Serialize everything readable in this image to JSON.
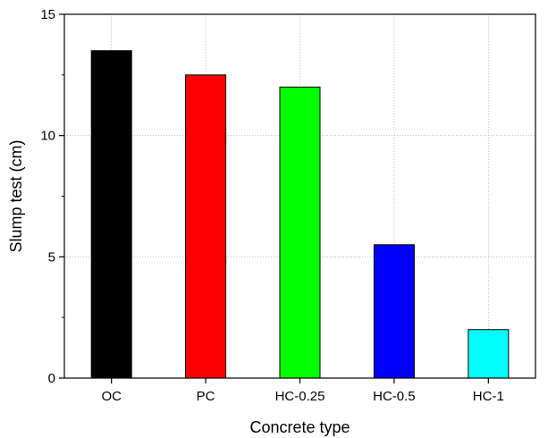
{
  "chart_data": {
    "type": "bar",
    "xlabel": "Concrete type",
    "ylabel": "Slump test (cm)",
    "categories": [
      "OC",
      "PC",
      "HC-0.25",
      "HC-0.5",
      "HC-1"
    ],
    "values": [
      13.5,
      12.5,
      12.0,
      5.5,
      2.0
    ],
    "colors": [
      "#000000",
      "#ff0000",
      "#00ff00",
      "#0000ff",
      "#00ffff"
    ],
    "ylim": [
      0,
      15
    ],
    "yticks": [
      0,
      5,
      10,
      15
    ],
    "grid": true,
    "legend": "none"
  }
}
